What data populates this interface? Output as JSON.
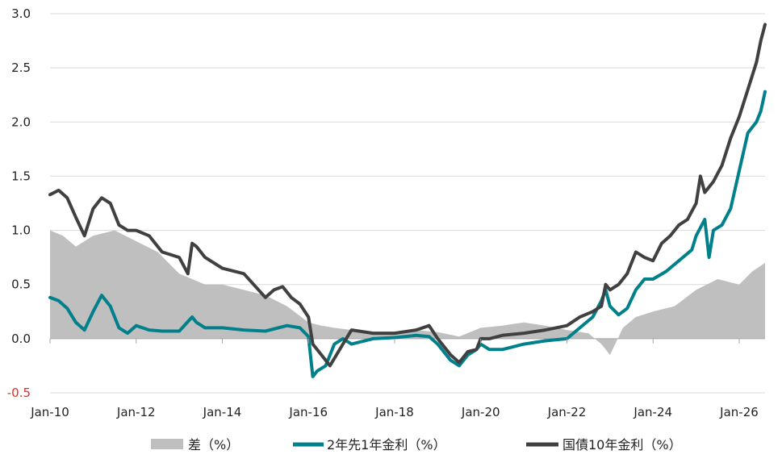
{
  "chart_data": {
    "type": "line",
    "title": "",
    "xlabel": "",
    "ylabel": "",
    "ylim": [
      -0.5,
      3.0
    ],
    "yticks": [
      3.0,
      2.5,
      2.0,
      1.5,
      1.0,
      0.5,
      0.0,
      -0.5
    ],
    "ytick_labels": [
      "3.0",
      "2.5",
      "2.0",
      "1.5",
      "1.0",
      "0.5",
      "0.0",
      "-0.5"
    ],
    "negative_tick_color": "#e0302a",
    "xlim": [
      2010.0,
      2026.6
    ],
    "xticks": [
      2010,
      2012,
      2014,
      2016,
      2018,
      2020,
      2022,
      2024,
      2026
    ],
    "xtick_labels": [
      "Jan-10",
      "Jan-12",
      "Jan-14",
      "Jan-16",
      "Jan-18",
      "Jan-20",
      "Jan-22",
      "Jan-24",
      "Jan-26"
    ],
    "grid": "horizontal",
    "legend_position": "bottom",
    "series": [
      {
        "name": "差（%）",
        "kind": "area",
        "color": "#bfbfbf",
        "x": [
          2010.0,
          2010.3,
          2010.6,
          2011.0,
          2011.5,
          2012.0,
          2012.5,
          2013.0,
          2013.3,
          2013.6,
          2014.0,
          2014.5,
          2015.0,
          2015.5,
          2016.0,
          2016.3,
          2016.6,
          2017.0,
          2017.5,
          2018.0,
          2018.5,
          2019.0,
          2019.5,
          2020.0,
          2020.5,
          2021.0,
          2021.5,
          2022.0,
          2022.5,
          2022.8,
          2023.0,
          2023.3,
          2023.6,
          2024.0,
          2024.5,
          2025.0,
          2025.5,
          2026.0,
          2026.3,
          2026.6
        ],
        "values": [
          1.0,
          0.95,
          0.85,
          0.95,
          1.0,
          0.9,
          0.8,
          0.6,
          0.55,
          0.5,
          0.5,
          0.45,
          0.4,
          0.3,
          0.15,
          0.12,
          0.1,
          0.08,
          0.05,
          0.05,
          0.08,
          0.06,
          0.02,
          0.1,
          0.12,
          0.15,
          0.12,
          0.08,
          0.05,
          -0.05,
          -0.15,
          0.1,
          0.2,
          0.25,
          0.3,
          0.45,
          0.55,
          0.5,
          0.62,
          0.7
        ]
      },
      {
        "name": "2年先1年金利（%）",
        "kind": "line",
        "color": "#00808a",
        "x": [
          2010.0,
          2010.2,
          2010.4,
          2010.6,
          2010.8,
          2011.0,
          2011.2,
          2011.4,
          2011.6,
          2011.8,
          2012.0,
          2012.3,
          2012.6,
          2013.0,
          2013.3,
          2013.4,
          2013.6,
          2014.0,
          2014.5,
          2015.0,
          2015.5,
          2015.8,
          2016.0,
          2016.1,
          2016.2,
          2016.4,
          2016.6,
          2016.8,
          2017.0,
          2017.5,
          2018.0,
          2018.5,
          2018.8,
          2019.0,
          2019.3,
          2019.5,
          2019.7,
          2019.9,
          2020.0,
          2020.2,
          2020.5,
          2021.0,
          2021.5,
          2022.0,
          2022.3,
          2022.6,
          2022.8,
          2022.9,
          2023.0,
          2023.2,
          2023.4,
          2023.6,
          2023.8,
          2024.0,
          2024.3,
          2024.6,
          2024.9,
          2025.0,
          2025.2,
          2025.3,
          2025.4,
          2025.6,
          2025.8,
          2026.0,
          2026.2,
          2026.4,
          2026.5,
          2026.6
        ],
        "values": [
          0.38,
          0.35,
          0.28,
          0.15,
          0.08,
          0.25,
          0.4,
          0.3,
          0.1,
          0.05,
          0.12,
          0.08,
          0.07,
          0.07,
          0.2,
          0.15,
          0.1,
          0.1,
          0.08,
          0.07,
          0.12,
          0.1,
          0.02,
          -0.35,
          -0.3,
          -0.25,
          -0.05,
          0.0,
          -0.05,
          0.0,
          0.01,
          0.03,
          0.02,
          -0.05,
          -0.2,
          -0.25,
          -0.15,
          -0.1,
          -0.05,
          -0.1,
          -0.1,
          -0.05,
          -0.02,
          0.0,
          0.1,
          0.2,
          0.35,
          0.45,
          0.3,
          0.22,
          0.28,
          0.45,
          0.55,
          0.55,
          0.62,
          0.72,
          0.82,
          0.95,
          1.1,
          0.75,
          1.0,
          1.05,
          1.2,
          1.55,
          1.9,
          2.0,
          2.1,
          2.28
        ]
      },
      {
        "name": "国債10年金利（%）",
        "kind": "line",
        "color": "#404040",
        "x": [
          2010.0,
          2010.2,
          2010.4,
          2010.6,
          2010.8,
          2011.0,
          2011.2,
          2011.4,
          2011.6,
          2011.8,
          2012.0,
          2012.3,
          2012.6,
          2013.0,
          2013.2,
          2013.3,
          2013.4,
          2013.6,
          2014.0,
          2014.5,
          2015.0,
          2015.2,
          2015.4,
          2015.6,
          2015.8,
          2016.0,
          2016.1,
          2016.3,
          2016.5,
          2016.8,
          2017.0,
          2017.5,
          2018.0,
          2018.5,
          2018.8,
          2019.0,
          2019.3,
          2019.5,
          2019.7,
          2019.9,
          2020.0,
          2020.2,
          2020.5,
          2021.0,
          2021.5,
          2022.0,
          2022.3,
          2022.6,
          2022.8,
          2022.9,
          2023.0,
          2023.2,
          2023.4,
          2023.6,
          2023.8,
          2024.0,
          2024.2,
          2024.4,
          2024.6,
          2024.8,
          2025.0,
          2025.1,
          2025.2,
          2025.3,
          2025.4,
          2025.6,
          2025.8,
          2026.0,
          2026.2,
          2026.4,
          2026.5,
          2026.6
        ],
        "values": [
          1.33,
          1.37,
          1.3,
          1.12,
          0.95,
          1.2,
          1.3,
          1.25,
          1.05,
          1.0,
          1.0,
          0.95,
          0.8,
          0.75,
          0.6,
          0.88,
          0.85,
          0.75,
          0.65,
          0.6,
          0.38,
          0.45,
          0.48,
          0.38,
          0.32,
          0.2,
          -0.05,
          -0.15,
          -0.25,
          -0.05,
          0.08,
          0.05,
          0.05,
          0.08,
          0.12,
          0.0,
          -0.15,
          -0.22,
          -0.12,
          -0.1,
          0.0,
          0.0,
          0.03,
          0.05,
          0.08,
          0.12,
          0.2,
          0.25,
          0.3,
          0.5,
          0.45,
          0.5,
          0.6,
          0.8,
          0.75,
          0.72,
          0.88,
          0.95,
          1.05,
          1.1,
          1.25,
          1.5,
          1.35,
          1.4,
          1.45,
          1.6,
          1.85,
          2.05,
          2.3,
          2.55,
          2.75,
          2.9
        ]
      }
    ]
  }
}
